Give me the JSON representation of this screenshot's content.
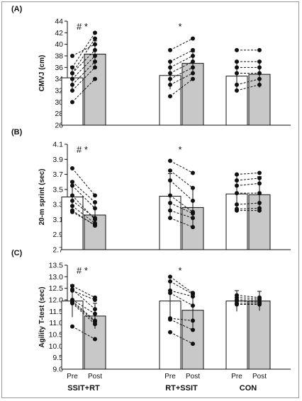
{
  "x_categories": [
    "Pre",
    "Post",
    "Pre",
    "Post",
    "Pre",
    "Post"
  ],
  "groups": [
    "SSIT+RT",
    "RT+SSIT",
    "CON"
  ],
  "colors": {
    "pre_bar": "#ffffff",
    "post_bar": "#c8c8c8",
    "axis": "#111111"
  },
  "chart_data": [
    {
      "type": "bar",
      "panel_label": "(A)",
      "ylabel": "CMVJ (cm)",
      "ylim": [
        26,
        44
      ],
      "yticks": [
        26,
        28,
        30,
        32,
        34,
        36,
        38,
        40,
        42,
        44
      ],
      "tick_decimals": 0,
      "groups": [
        "SSIT+RT",
        "RT+SSIT",
        "CON"
      ],
      "bar_labels": [
        "Pre",
        "Post"
      ],
      "means": [
        [
          34.2,
          38.3
        ],
        [
          34.6,
          36.7
        ],
        [
          34.5,
          34.8
        ]
      ],
      "sd": [
        [
          2.0,
          2.3
        ],
        [
          2.4,
          2.0
        ],
        [
          2.4,
          2.3
        ]
      ],
      "annotations": [
        "# *",
        "*",
        ""
      ],
      "individuals": [
        [
          [
            38,
            40
          ],
          [
            36,
            42
          ],
          [
            35,
            41
          ],
          [
            35,
            39
          ],
          [
            34,
            38
          ],
          [
            33,
            37
          ],
          [
            32,
            36
          ],
          [
            30,
            34
          ]
        ],
        [
          [
            39,
            41
          ],
          [
            37,
            39
          ],
          [
            36,
            38
          ],
          [
            35,
            37
          ],
          [
            34,
            36
          ],
          [
            33,
            35
          ],
          [
            31,
            34
          ]
        ],
        [
          [
            39,
            39
          ],
          [
            37,
            37
          ],
          [
            36,
            36
          ],
          [
            35,
            35
          ],
          [
            33,
            34
          ],
          [
            32,
            33
          ]
        ]
      ]
    },
    {
      "type": "bar",
      "panel_label": "(B)",
      "ylabel": "20-m sprint (sec)",
      "ylim": [
        2.7,
        4.1
      ],
      "yticks": [
        2.7,
        2.9,
        3.1,
        3.3,
        3.5,
        3.7,
        3.9,
        4.1
      ],
      "tick_decimals": 1,
      "groups": [
        "SSIT+RT",
        "RT+SSIT",
        "CON"
      ],
      "bar_labels": [
        "Pre",
        "Post"
      ],
      "means": [
        [
          3.4,
          3.16
        ],
        [
          3.41,
          3.26
        ],
        [
          3.44,
          3.43
        ]
      ],
      "sd": [
        [
          0.21,
          0.16
        ],
        [
          0.3,
          0.26
        ],
        [
          0.25,
          0.24
        ]
      ],
      "annotations": [
        "# *",
        "*",
        ""
      ],
      "individuals": [
        [
          [
            3.78,
            3.42
          ],
          [
            3.6,
            3.33
          ],
          [
            3.55,
            3.25
          ],
          [
            3.42,
            3.1
          ],
          [
            3.35,
            3.12
          ],
          [
            3.28,
            3.05
          ],
          [
            3.22,
            3.02
          ],
          [
            3.2,
            3.03
          ]
        ],
        [
          [
            3.88,
            3.72
          ],
          [
            3.75,
            3.52
          ],
          [
            3.62,
            3.35
          ],
          [
            3.42,
            3.2
          ],
          [
            3.32,
            3.18
          ],
          [
            3.22,
            3.12
          ],
          [
            3.12,
            3.0
          ]
        ],
        [
          [
            3.7,
            3.72
          ],
          [
            3.62,
            3.65
          ],
          [
            3.55,
            3.58
          ],
          [
            3.45,
            3.45
          ],
          [
            3.3,
            3.32
          ],
          [
            3.24,
            3.25
          ],
          [
            3.22,
            3.22
          ]
        ]
      ]
    },
    {
      "type": "bar",
      "panel_label": "(C)",
      "ylabel": "Agility T-test (sec)",
      "ylim": [
        9,
        13.5
      ],
      "yticks": [
        9,
        9.5,
        10,
        10.5,
        11,
        11.5,
        12,
        12.5,
        13,
        13.5
      ],
      "tick_decimals": 1,
      "groups": [
        "SSIT+RT",
        "RT+SSIT",
        "CON"
      ],
      "bar_labels": [
        "Pre",
        "Post"
      ],
      "means": [
        [
          11.95,
          11.3
        ],
        [
          11.95,
          11.55
        ],
        [
          11.95,
          11.95
        ]
      ],
      "sd": [
        [
          0.7,
          0.55
        ],
        [
          0.85,
          0.75
        ],
        [
          0.45,
          0.42
        ]
      ],
      "annotations": [
        "# *",
        "*",
        ""
      ],
      "individuals": [
        [
          [
            12.6,
            12.1
          ],
          [
            12.4,
            12.0
          ],
          [
            12.45,
            11.6
          ],
          [
            12.0,
            11.4
          ],
          [
            11.95,
            11.1
          ],
          [
            11.9,
            11.05
          ],
          [
            11.85,
            10.95
          ],
          [
            10.85,
            10.3
          ]
        ],
        [
          [
            13.0,
            12.3
          ],
          [
            12.8,
            12.25
          ],
          [
            12.4,
            12.15
          ],
          [
            12.3,
            11.75
          ],
          [
            11.2,
            11.1
          ],
          [
            11.15,
            10.7
          ],
          [
            10.6,
            10.1
          ]
        ],
        [
          [
            12.2,
            12.1
          ],
          [
            12.1,
            12.05
          ],
          [
            12.0,
            12.0
          ],
          [
            11.95,
            11.9
          ],
          [
            11.85,
            11.85
          ],
          [
            11.8,
            11.8
          ]
        ]
      ]
    }
  ]
}
